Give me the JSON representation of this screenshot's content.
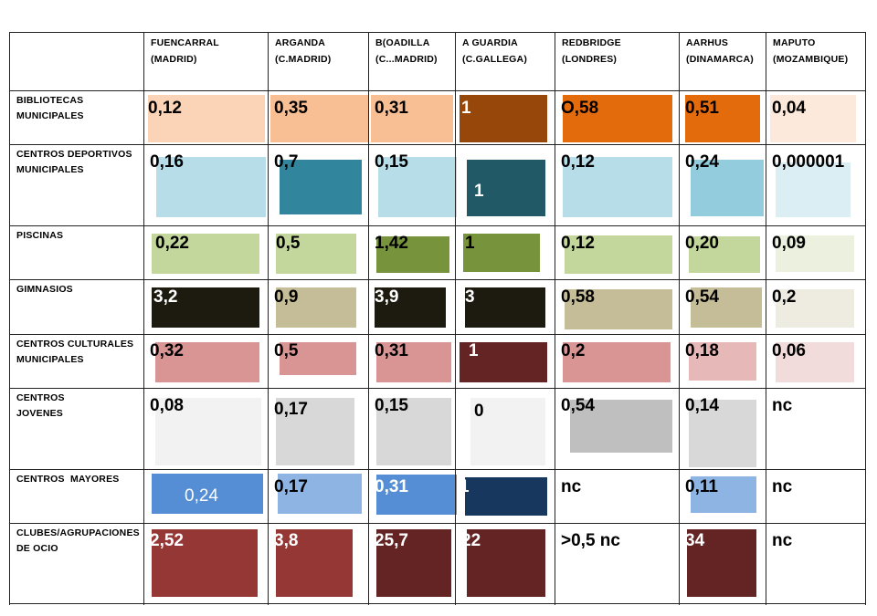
{
  "columns": [
    {
      "line1": "FUENCARRAL",
      "line2": "(MADRID)"
    },
    {
      "line1": "ARGANDA",
      "line2": "(C.MADRID)"
    },
    {
      "line1": "B(OADILLA",
      "line2": "(C...MADRID)"
    },
    {
      "line1": "A GUARDIA",
      "line2": "(C.GALLEGA)"
    },
    {
      "line1": "REDBRIDGE",
      "line2": "(LONDRES)"
    },
    {
      "line1": "AARHUS",
      "line2": "(DINAMARCA)"
    },
    {
      "line1": "MAPUTO",
      "line2": "(MOZAMBIQUE)"
    }
  ],
  "rows": [
    {
      "label": [
        "BIBLIOTECAS",
        "MUNICIPALES"
      ],
      "cells": [
        {
          "value": "0,12",
          "color": "#fbd3b6"
        },
        {
          "value": "0,35",
          "color": "#f7bf93"
        },
        {
          "value": "0,31",
          "color": "#f7bf93"
        },
        {
          "value": "1",
          "color": "#964709",
          "light": true
        },
        {
          "value": "O,58",
          "color": "#e46b0c"
        },
        {
          "value": "0,51",
          "color": "#e46b0c"
        },
        {
          "value": "0,04",
          "color": "#fde9db"
        }
      ]
    },
    {
      "label": [
        "CENTROS DEPORTIVOS",
        "MUNICIPALES"
      ],
      "cells": [
        {
          "value": "0,16",
          "color": "#b6dde8"
        },
        {
          "value": "0,7",
          "color": "#31859c"
        },
        {
          "value": "0,15",
          "color": "#b6dde8"
        },
        {
          "value": "1",
          "color": "#215967",
          "light": true
        },
        {
          "value": "0,12",
          "color": "#b6dde8"
        },
        {
          "value": "0,24",
          "color": "#93cddd"
        },
        {
          "value": "0,000001",
          "color": "#dbeef4"
        }
      ]
    },
    {
      "label": [
        "PISCINAS"
      ],
      "cells": [
        {
          "value": "0,22",
          "color": "#c3d69b"
        },
        {
          "value": "0,5",
          "color": "#c3d69b"
        },
        {
          "value": "1,42",
          "color": "#77933c"
        },
        {
          "value": "1",
          "color": "#77933c"
        },
        {
          "value": "0,12",
          "color": "#c3d69b"
        },
        {
          "value": "0,20",
          "color": "#c3d69b"
        },
        {
          "value": "0,09",
          "color": "#ebf1de"
        }
      ]
    },
    {
      "label": [
        "GIMNASIOS"
      ],
      "cells": [
        {
          "value": "3,2",
          "color": "#1d1b10",
          "light": true
        },
        {
          "value": "0,9",
          "color": "#c4bd97"
        },
        {
          "value": "3,9",
          "color": "#1d1b10",
          "light": true
        },
        {
          "value": "3",
          "color": "#1d1b10",
          "light": true
        },
        {
          "value": "0,58",
          "color": "#c4bd97"
        },
        {
          "value": "0,54",
          "color": "#c4bd97"
        },
        {
          "value": "0,2",
          "color": "#eeece1"
        }
      ]
    },
    {
      "label": [
        "CENTROS CULTURALES",
        "MUNICIPALES"
      ],
      "cells": [
        {
          "value": "0,32",
          "color": "#d99594"
        },
        {
          "value": "0,5",
          "color": "#d99594"
        },
        {
          "value": "0,31",
          "color": "#d99594"
        },
        {
          "value": "1",
          "color": "#632423",
          "light": true
        },
        {
          "value": "0,2",
          "color": "#d99594"
        },
        {
          "value": "0,18",
          "color": "#e6b9b8"
        },
        {
          "value": "0,06",
          "color": "#f2dcdb"
        }
      ]
    },
    {
      "label": [
        "CENTROS",
        "JOVENES"
      ],
      "cells": [
        {
          "value": "0,08",
          "color": "#f2f2f2"
        },
        {
          "value": "0,17",
          "color": "#d8d8d8"
        },
        {
          "value": "0,15",
          "color": "#d8d8d8"
        },
        {
          "value": "0",
          "color": "#f2f2f2"
        },
        {
          "value": "0,54",
          "color": "#bfbfbf"
        },
        {
          "value": "0,14",
          "color": "#d8d8d8"
        },
        {
          "value": "nc",
          "color": ""
        }
      ]
    },
    {
      "label": [
        "CENTROS  MAYORES"
      ],
      "cells": [
        {
          "value": "0,24",
          "color": "#558ed5",
          "light": true
        },
        {
          "value": "0,17",
          "color": "#8eb4e3"
        },
        {
          "value": "0,31",
          "color": "#558ed5",
          "light": true
        },
        {
          "value": "1",
          "color": "#17375e",
          "light": true
        },
        {
          "value": "nc",
          "color": ""
        },
        {
          "value": "0,11",
          "color": "#8eb4e3"
        },
        {
          "value": "nc",
          "color": ""
        }
      ]
    },
    {
      "label": [
        "CLUBES/AGRUPACIONES",
        "DE OCIO"
      ],
      "cells": [
        {
          "value": "2,52",
          "color": "#953735",
          "light": true
        },
        {
          "value": "3,8",
          "color": "#953735",
          "light": true
        },
        {
          "value": "25,7",
          "color": "#632423",
          "light": true
        },
        {
          "value": "22",
          "color": "#632423",
          "light": true
        },
        {
          "value": ">0,5 nc",
          "color": ""
        },
        {
          "value": "34",
          "color": "#632423",
          "light": true
        },
        {
          "value": "nc",
          "color": ""
        }
      ]
    }
  ]
}
